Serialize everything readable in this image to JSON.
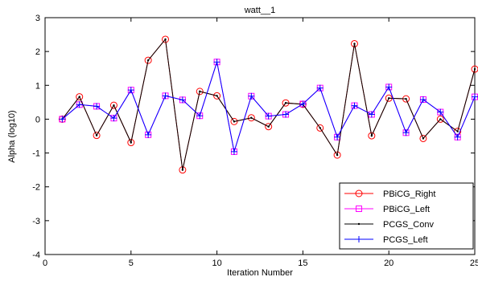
{
  "chart_data": {
    "type": "line",
    "title": "watt__1",
    "xlabel": "Iteration Number",
    "ylabel": "Alpha (log10)",
    "xlim": [
      0,
      25
    ],
    "ylim": [
      -4,
      3
    ],
    "xticks": [
      0,
      5,
      10,
      15,
      20,
      25
    ],
    "yticks": [
      -4,
      -3,
      -2,
      -1,
      0,
      1,
      2,
      3
    ],
    "grid": false,
    "legend_position": "bottom-right",
    "x": [
      1,
      2,
      3,
      4,
      5,
      6,
      7,
      8,
      9,
      10,
      11,
      12,
      13,
      14,
      15,
      16,
      17,
      18,
      19,
      20,
      21,
      22,
      23,
      24,
      25
    ],
    "series": [
      {
        "name": "PBiCG_Right",
        "color": "#ff0000",
        "marker": "circle",
        "values": [
          0.0,
          0.66,
          -0.48,
          0.41,
          -0.69,
          1.74,
          2.36,
          -1.5,
          0.82,
          0.69,
          -0.07,
          0.04,
          -0.22,
          0.48,
          0.44,
          -0.26,
          -1.06,
          2.23,
          -0.49,
          0.62,
          0.6,
          -0.57,
          0.0,
          -0.36,
          1.48
        ]
      },
      {
        "name": "PBiCG_Left",
        "color": "#ff00ff",
        "marker": "square",
        "values": [
          0.0,
          0.43,
          0.38,
          0.03,
          0.86,
          -0.46,
          0.69,
          0.57,
          0.1,
          1.69,
          -0.96,
          0.68,
          0.09,
          0.14,
          0.45,
          0.92,
          -0.53,
          0.4,
          0.14,
          0.95,
          -0.4,
          0.58,
          0.21,
          -0.53,
          0.66
        ]
      },
      {
        "name": "PCGS_Conv",
        "color": "#000000",
        "marker": "point",
        "values": [
          0.0,
          0.66,
          -0.48,
          0.41,
          -0.69,
          1.74,
          2.36,
          -1.5,
          0.82,
          0.69,
          -0.07,
          0.04,
          -0.22,
          0.48,
          0.44,
          -0.26,
          -1.06,
          2.23,
          -0.49,
          0.62,
          0.6,
          -0.57,
          0.0,
          -0.36,
          1.48
        ]
      },
      {
        "name": "PCGS_Left",
        "color": "#0000ff",
        "marker": "plus",
        "values": [
          0.0,
          0.43,
          0.38,
          0.03,
          0.86,
          -0.46,
          0.69,
          0.57,
          0.1,
          1.69,
          -0.96,
          0.68,
          0.09,
          0.14,
          0.45,
          0.92,
          -0.53,
          0.4,
          0.14,
          0.95,
          -0.4,
          0.58,
          0.21,
          -0.53,
          0.66
        ]
      }
    ]
  }
}
